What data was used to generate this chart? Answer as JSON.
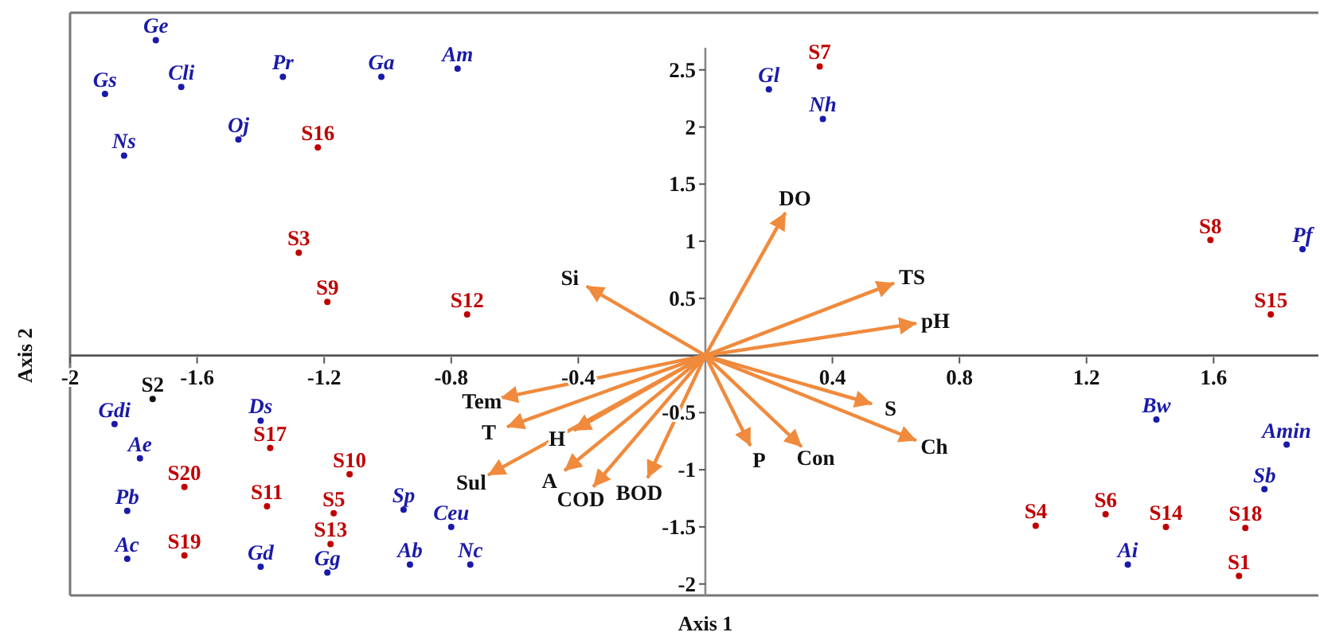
{
  "chart_data": {
    "type": "scatter",
    "xlabel": "Axis 1",
    "ylabel": "Axis 2",
    "xlim": [
      -2,
      1.93
    ],
    "ylim": [
      -2.1,
      3
    ],
    "xticks": [
      -2,
      -1.6,
      -1.2,
      -0.8,
      -0.4,
      0.4,
      0.8,
      1.2,
      1.6
    ],
    "yticks": [
      -2,
      -1.5,
      -1,
      -0.5,
      0.5,
      1,
      1.5,
      2,
      2.5
    ],
    "grid": false,
    "series": [
      {
        "marker": "circle",
        "color": "#1a1aa8",
        "x": [
          -1.73,
          -1.89,
          -1.65,
          -1.33,
          -1.02,
          -0.78,
          -1.83,
          -1.47,
          0.2,
          0.37,
          1.88,
          -1.86,
          -1.4,
          -1.78,
          -1.82,
          -0.95,
          -0.8,
          -1.82,
          -1.4,
          -1.19,
          -0.93,
          -0.74,
          1.42,
          1.83,
          1.76,
          1.33
        ],
        "values": [
          2.76,
          2.29,
          2.35,
          2.44,
          2.44,
          2.51,
          1.75,
          1.89,
          2.33,
          2.07,
          0.93,
          -0.6,
          -0.57,
          -0.9,
          -1.36,
          -1.35,
          -1.5,
          -1.78,
          -1.85,
          -1.9,
          -1.83,
          -1.83,
          -0.56,
          -0.78,
          -1.17,
          -1.83
        ],
        "value_labels": [
          "Ge",
          "Gs",
          "Cli",
          "Pr",
          "Ga",
          "Am",
          "Ns",
          "Oj",
          "Gl",
          "Nh",
          "Pf",
          "Gdi",
          "Ds",
          "Ae",
          "Pb",
          "Sp",
          "Ceu",
          "Ac",
          "Gd",
          "Gg",
          "Ab",
          "Nc",
          "Bw",
          "Amin",
          "Sb",
          "Ai"
        ]
      },
      {
        "marker": "circle",
        "color": "#c00000",
        "colors": [
          "#c00000",
          "#c00000",
          "#c00000",
          "#c00000",
          "#c00000",
          "#c00000",
          "#c00000",
          "#111111",
          "#c00000",
          "#c00000",
          "#c00000",
          "#c00000",
          "#c00000",
          "#c00000",
          "#c00000",
          "#c00000",
          "#c00000",
          "#c00000",
          "#c00000",
          "#c00000"
        ],
        "x": [
          -1.22,
          -1.28,
          -1.19,
          -0.75,
          0.36,
          1.59,
          1.78,
          -1.74,
          -1.37,
          -1.12,
          -1.64,
          -1.38,
          -1.17,
          -1.18,
          -1.64,
          1.04,
          1.26,
          1.45,
          1.7,
          1.68
        ],
        "values": [
          1.82,
          0.9,
          0.47,
          0.36,
          2.53,
          1.01,
          0.36,
          -0.38,
          -0.81,
          -1.04,
          -1.15,
          -1.32,
          -1.38,
          -1.65,
          -1.75,
          -1.49,
          -1.39,
          -1.5,
          -1.51,
          -1.93
        ],
        "value_labels": [
          "S16",
          "S3",
          "S9",
          "S12",
          "S7",
          "S8",
          "S15",
          "S2",
          "S17",
          "S10",
          "S20",
          "S11",
          "S5",
          "S13",
          "S19",
          "S4",
          "S6",
          "S14",
          "S18",
          "S1"
        ]
      },
      {
        "type": "line",
        "name": "DO",
        "color": "#f08a3c",
        "x": [
          0,
          0.25
        ],
        "values": [
          0,
          1.24
        ]
      },
      {
        "type": "line",
        "name": "TS",
        "color": "#f08a3c",
        "x": [
          0,
          0.59
        ],
        "values": [
          0,
          0.63
        ]
      },
      {
        "type": "line",
        "name": "pH",
        "color": "#f08a3c",
        "x": [
          0,
          0.66
        ],
        "values": [
          0,
          0.28
        ]
      },
      {
        "type": "line",
        "name": "Si",
        "color": "#f08a3c",
        "x": [
          0,
          -0.37
        ],
        "values": [
          0,
          0.6
        ]
      },
      {
        "type": "line",
        "name": "Tem",
        "color": "#f08a3c",
        "x": [
          0,
          -0.64
        ],
        "values": [
          0,
          -0.37
        ]
      },
      {
        "type": "line",
        "name": "T",
        "color": "#f08a3c",
        "x": [
          0,
          -0.62
        ],
        "values": [
          0,
          -0.62
        ]
      },
      {
        "type": "line",
        "name": "H",
        "color": "#f08a3c",
        "x": [
          0,
          -0.41
        ],
        "values": [
          0,
          -0.65
        ]
      },
      {
        "type": "line",
        "name": "Sul",
        "color": "#f08a3c",
        "x": [
          0,
          -0.68
        ],
        "values": [
          0,
          -1.04
        ]
      },
      {
        "type": "line",
        "name": "A",
        "color": "#f08a3c",
        "x": [
          0,
          -0.44
        ],
        "values": [
          0,
          -1.0
        ]
      },
      {
        "type": "line",
        "name": "COD",
        "color": "#f08a3c",
        "x": [
          0,
          -0.35
        ],
        "values": [
          0,
          -1.14
        ]
      },
      {
        "type": "line",
        "name": "BOD",
        "color": "#f08a3c",
        "x": [
          0,
          -0.18
        ],
        "values": [
          0,
          -1.06
        ]
      },
      {
        "type": "line",
        "name": "P",
        "color": "#f08a3c",
        "x": [
          0,
          0.14
        ],
        "values": [
          0,
          -0.78
        ]
      },
      {
        "type": "line",
        "name": "Con",
        "color": "#f08a3c",
        "x": [
          0,
          0.3
        ],
        "values": [
          0,
          -0.79
        ]
      },
      {
        "type": "line",
        "name": "S",
        "color": "#f08a3c",
        "x": [
          0,
          0.52
        ],
        "values": [
          0,
          -0.42
        ]
      },
      {
        "type": "line",
        "name": "Ch",
        "color": "#f08a3c",
        "x": [
          0,
          0.66
        ],
        "values": [
          0,
          -0.74
        ]
      }
    ]
  }
}
